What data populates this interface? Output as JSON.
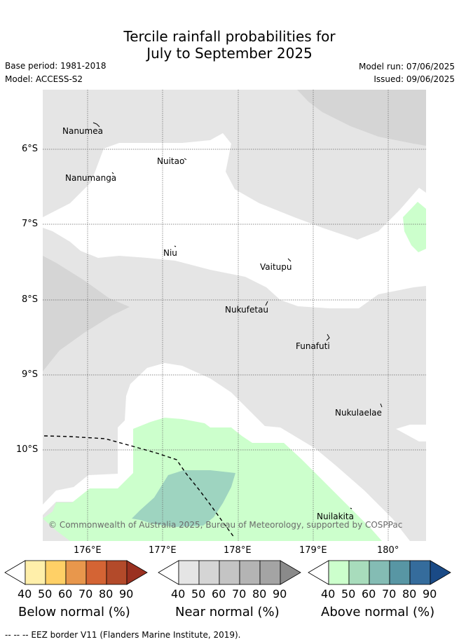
{
  "header": {
    "title_line1": "Tercile rainfall probabilities for",
    "title_line2": "July to September 2025",
    "base_period": "Base period: 1981-2018",
    "model": "Model: ACCESS-S2",
    "model_run": "Model run: 07/06/2025",
    "issued": "Issued: 09/06/2025"
  },
  "map": {
    "lat_labels": [
      "6°S",
      "7°S",
      "8°S",
      "9°S",
      "10°S"
    ],
    "lon_labels": [
      "176°E",
      "177°E",
      "178°E",
      "179°E",
      "180°"
    ],
    "places": [
      {
        "name": "Nanumea"
      },
      {
        "name": "Nuitao"
      },
      {
        "name": "Nanumanga"
      },
      {
        "name": "Niu"
      },
      {
        "name": "Vaitupu"
      },
      {
        "name": "Nukufetau"
      },
      {
        "name": "Funafuti"
      },
      {
        "name": "Nukulaelae"
      },
      {
        "name": "Nuilakita"
      }
    ],
    "copyright": "© Commonwealth of Australia 2025, Bureau of Meteorology, supported by COSPPac",
    "colors": {
      "near_40": "#e5e5e5",
      "near_50": "#d5d5d5",
      "above_40": "#ccffcc",
      "above_50": "#9ed4c0",
      "white": "#ffffff"
    }
  },
  "colorbars": [
    {
      "title": "Below normal (%)",
      "ticks": [
        "40",
        "50",
        "60",
        "70",
        "80",
        "90"
      ],
      "colors": [
        "#ffffff",
        "#ffefaa",
        "#ffd066",
        "#e8974c",
        "#d46434",
        "#b34a2a",
        "#9a3020"
      ]
    },
    {
      "title": "Near normal (%)",
      "ticks": [
        "40",
        "50",
        "60",
        "70",
        "80",
        "90"
      ],
      "colors": [
        "#ffffff",
        "#e5e5e5",
        "#d5d5d5",
        "#c4c4c4",
        "#b4b4b4",
        "#a4a4a4",
        "#8a8a8a"
      ]
    },
    {
      "title": "Above normal (%)",
      "ticks": [
        "40",
        "50",
        "60",
        "70",
        "80",
        "90"
      ],
      "colors": [
        "#ffffff",
        "#ccffcc",
        "#a8dcbc",
        "#84bcb4",
        "#5896a4",
        "#356c9c",
        "#1a4a86"
      ]
    }
  ],
  "footnote": "--  --  -- EEZ border V11 (Flanders Marine Institute, 2019)."
}
